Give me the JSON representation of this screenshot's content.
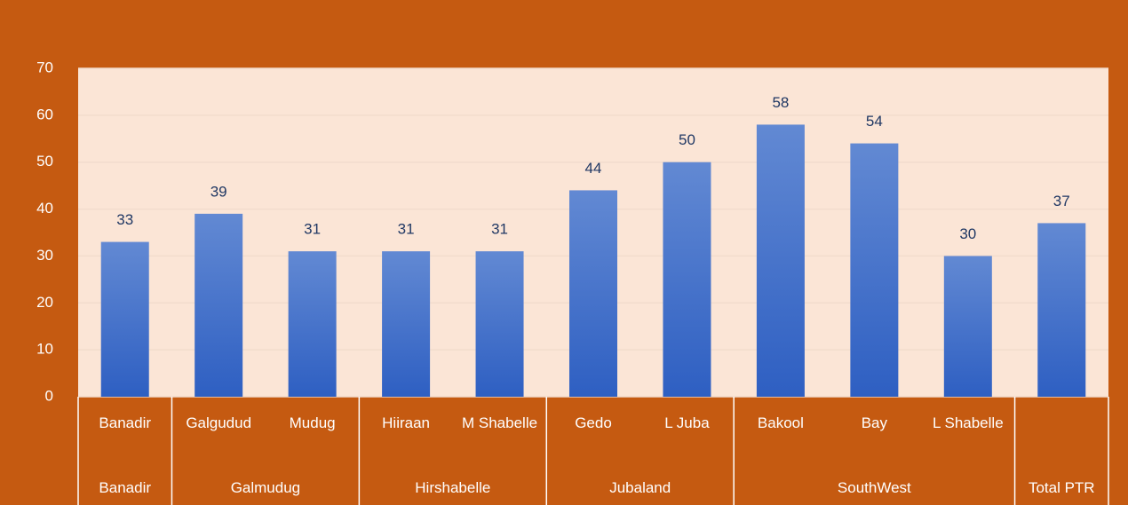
{
  "chart_data": {
    "type": "bar",
    "categories": [
      "Banadir",
      "Galgudud",
      "Mudug",
      "Hiiraan",
      "M Shabelle",
      "Gedo",
      "L Juba",
      "Bakool",
      "Bay",
      "L Shabelle",
      null
    ],
    "groups": [
      {
        "label": "Banadir",
        "count": 1
      },
      {
        "label": "Galmudug",
        "count": 2
      },
      {
        "label": "Hirshabelle",
        "count": 2
      },
      {
        "label": "Jubaland",
        "count": 2
      },
      {
        "label": "SouthWest",
        "count": 3
      },
      {
        "label": "Total PTR",
        "count": 1
      }
    ],
    "values": [
      33,
      39,
      31,
      31,
      31,
      44,
      50,
      58,
      54,
      30,
      37
    ],
    "color": "#4472c4",
    "ylim": [
      0,
      70
    ],
    "yticks": [
      0,
      10,
      20,
      30,
      40,
      50,
      60,
      70
    ],
    "grid": true
  }
}
